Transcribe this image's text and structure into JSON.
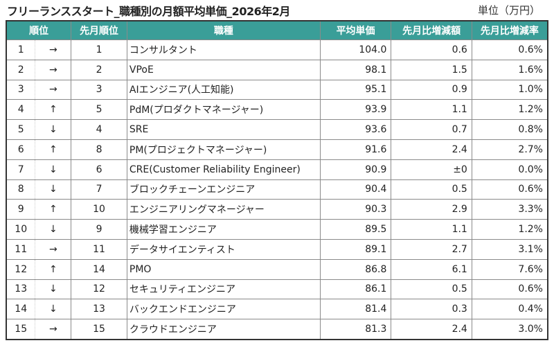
{
  "title": "フリーランススタート_職種別の月額平均単価_2026年2月",
  "unit": "単位（万円）",
  "headers": {
    "rank": "順位",
    "prev_rank": "先月順位",
    "job": "職種",
    "avg": "平均単価",
    "diff": "先月比増減額",
    "rate": "先月比増減率"
  },
  "rows": [
    {
      "rank": "1",
      "arrow": "→",
      "prev": "1",
      "job": "コンサルタント",
      "avg": "104.0",
      "diff": "0.6",
      "rate": "0.6%"
    },
    {
      "rank": "2",
      "arrow": "→",
      "prev": "2",
      "job": "VPoE",
      "avg": "98.1",
      "diff": "1.5",
      "rate": "1.6%"
    },
    {
      "rank": "3",
      "arrow": "→",
      "prev": "3",
      "job": "AIエンジニア(人工知能)",
      "avg": "95.1",
      "diff": "0.9",
      "rate": "1.0%"
    },
    {
      "rank": "4",
      "arrow": "↑",
      "prev": "5",
      "job": "PdM(プロダクトマネージャー)",
      "avg": "93.9",
      "diff": "1.1",
      "rate": "1.2%"
    },
    {
      "rank": "5",
      "arrow": "↓",
      "prev": "4",
      "job": "SRE",
      "avg": "93.6",
      "diff": "0.7",
      "rate": "0.8%"
    },
    {
      "rank": "6",
      "arrow": "↑",
      "prev": "8",
      "job": "PM(プロジェクトマネージャー)",
      "avg": "91.6",
      "diff": "2.4",
      "rate": "2.7%"
    },
    {
      "rank": "7",
      "arrow": "↓",
      "prev": "6",
      "job": "CRE(Customer Reliability Engineer)",
      "avg": "90.9",
      "diff": "±0",
      "rate": "0.0%"
    },
    {
      "rank": "8",
      "arrow": "↓",
      "prev": "7",
      "job": "ブロックチェーンエンジニア",
      "avg": "90.4",
      "diff": "0.5",
      "rate": "0.6%"
    },
    {
      "rank": "9",
      "arrow": "↑",
      "prev": "10",
      "job": "エンジニアリングマネージャー",
      "avg": "90.3",
      "diff": "2.9",
      "rate": "3.3%"
    },
    {
      "rank": "10",
      "arrow": "↓",
      "prev": "9",
      "job": "機械学習エンジニア",
      "avg": "89.5",
      "diff": "1.1",
      "rate": "1.2%"
    },
    {
      "rank": "11",
      "arrow": "→",
      "prev": "11",
      "job": "データサイエンティスト",
      "avg": "89.1",
      "diff": "2.7",
      "rate": "3.1%"
    },
    {
      "rank": "12",
      "arrow": "↑",
      "prev": "14",
      "job": "PMO",
      "avg": "86.8",
      "diff": "6.1",
      "rate": "7.6%"
    },
    {
      "rank": "13",
      "arrow": "↓",
      "prev": "12",
      "job": "セキュリティエンジニア",
      "avg": "86.1",
      "diff": "0.5",
      "rate": "0.6%"
    },
    {
      "rank": "14",
      "arrow": "↓",
      "prev": "13",
      "job": "バックエンドエンジニア",
      "avg": "81.4",
      "diff": "0.3",
      "rate": "0.4%"
    },
    {
      "rank": "15",
      "arrow": "→",
      "prev": "15",
      "job": "クラウドエンジニア",
      "avg": "81.3",
      "diff": "2.4",
      "rate": "3.0%"
    }
  ],
  "colors": {
    "header_bg": "#3a9e98",
    "header_text": "#ffffff"
  }
}
